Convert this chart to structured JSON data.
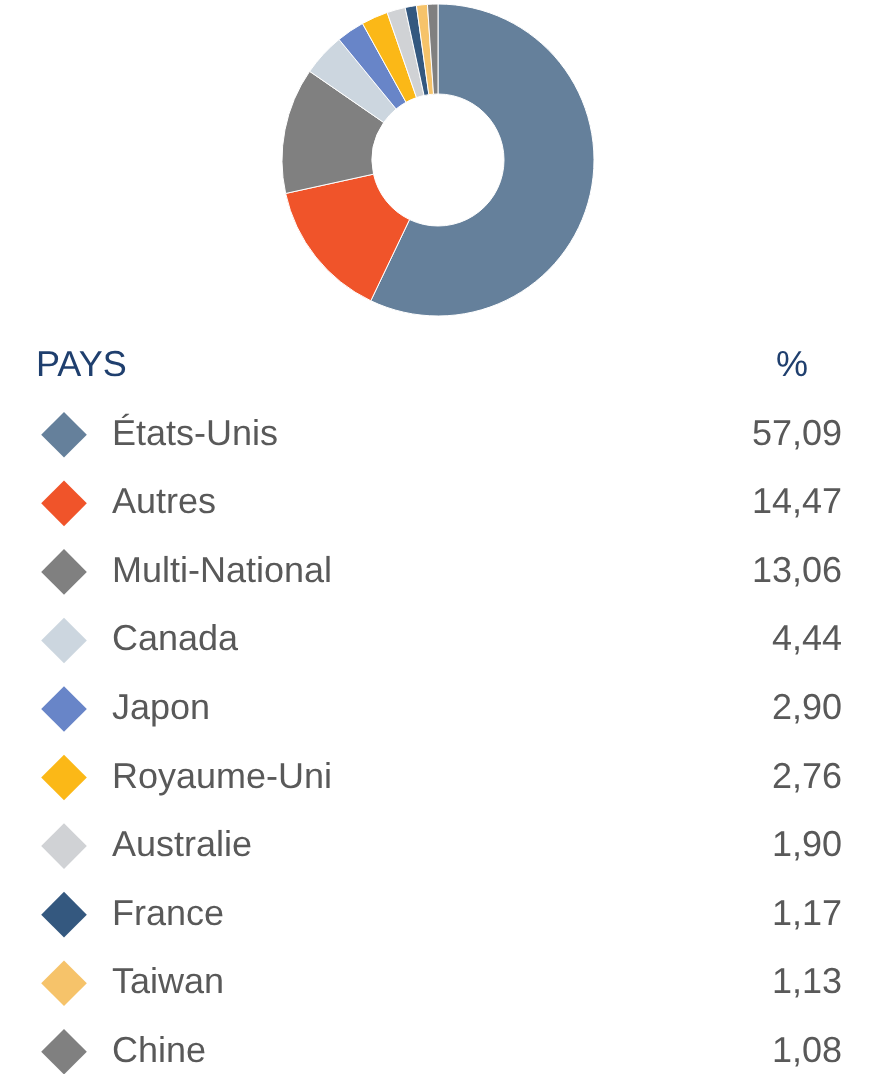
{
  "chart_data": {
    "type": "donut",
    "legend_title": "PAYS",
    "annotations": [
      "%"
    ],
    "legend": "bottom",
    "categories": [
      "États-Unis",
      "Autres",
      "Multi-National",
      "Canada",
      "Japon",
      "Royaume-Uni",
      "Australie",
      "France",
      "Taiwan",
      "Chine"
    ],
    "values": [
      57.09,
      14.47,
      13.06,
      4.44,
      2.9,
      2.76,
      1.9,
      1.17,
      1.13,
      1.08
    ],
    "value_labels": [
      "57,09",
      "14,47",
      "13,06",
      "4,44",
      "2,90",
      "2,76",
      "1,90",
      "1,17",
      "1,13",
      "1,08"
    ],
    "colors": [
      "#65809b",
      "#f0542a",
      "#808080",
      "#ccd6df",
      "#6885c8",
      "#fbb817",
      "#d0d2d5",
      "#34587f",
      "#f6c36a",
      "#808080"
    ]
  }
}
